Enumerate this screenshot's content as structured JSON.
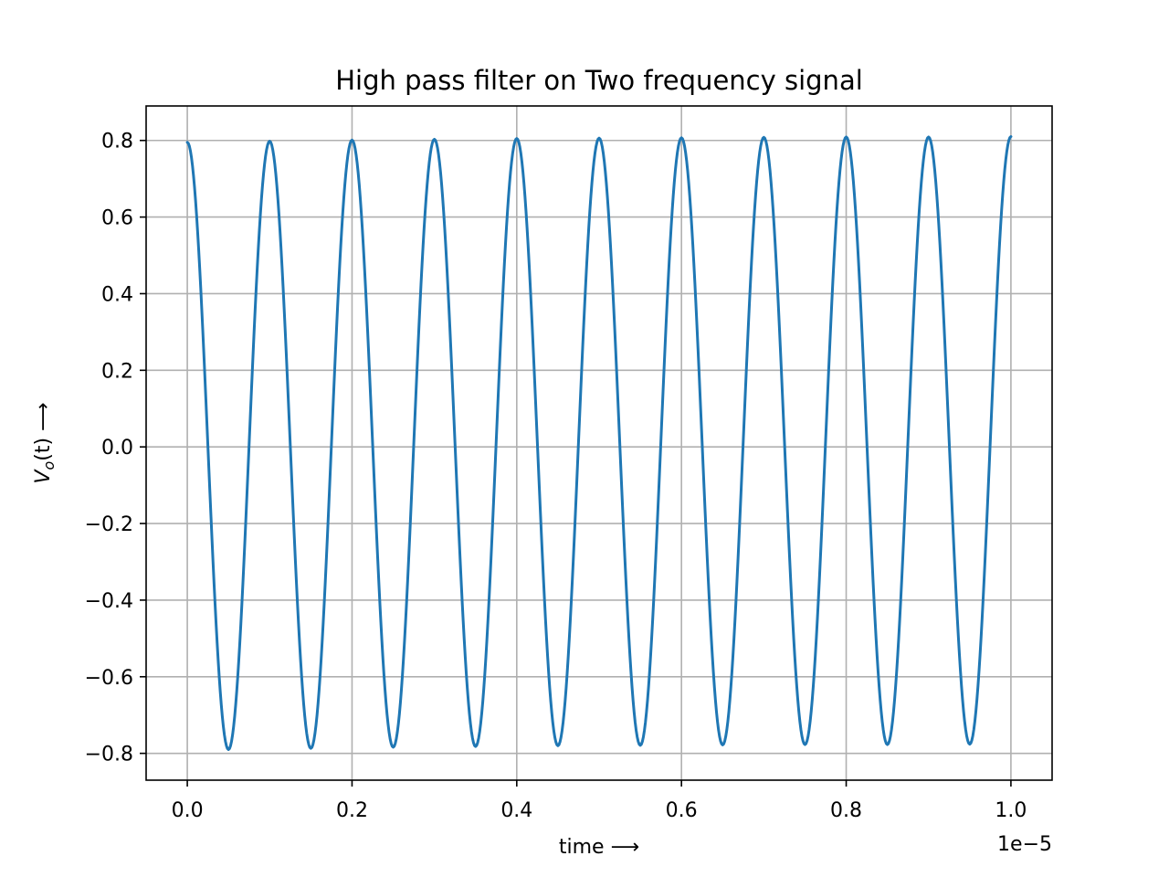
{
  "chart_data": {
    "type": "line",
    "title": "High pass filter on Two frequency signal",
    "xlabel": "time ⟶",
    "ylabel_base": "V",
    "ylabel_sub": "o",
    "ylabel_rest": "(t) ⟶",
    "x_offset_label": "1e−5",
    "xlim": [
      -0.05,
      1.05
    ],
    "ylim": [
      -0.87,
      0.89
    ],
    "x_ticks": [
      0.0,
      0.2,
      0.4,
      0.6,
      0.8,
      1.0
    ],
    "x_tick_labels": [
      "0.0",
      "0.2",
      "0.4",
      "0.6",
      "0.8",
      "1.0"
    ],
    "y_ticks": [
      -0.8,
      -0.6,
      -0.4,
      -0.2,
      0.0,
      0.2,
      0.4,
      0.6,
      0.8
    ],
    "y_tick_labels": [
      "−0.8",
      "−0.6",
      "−0.4",
      "−0.2",
      "0.0",
      "0.2",
      "0.4",
      "0.6",
      "0.8"
    ],
    "grid": true,
    "series": [
      {
        "color": "#1f77b4",
        "x": [
          0.0,
          0.05,
          0.1,
          0.15,
          0.2,
          0.25,
          0.3,
          0.35,
          0.4,
          0.45,
          0.5,
          0.55,
          0.6,
          0.65,
          0.7,
          0.75,
          0.8,
          0.85,
          0.9,
          0.95,
          1.0
        ],
        "y": [
          0.795,
          -0.79,
          0.798,
          -0.787,
          0.801,
          -0.784,
          0.803,
          -0.782,
          0.805,
          -0.78,
          0.806,
          -0.779,
          0.807,
          -0.778,
          0.808,
          -0.777,
          0.809,
          -0.777,
          0.809,
          -0.776,
          0.81
        ]
      }
    ]
  }
}
